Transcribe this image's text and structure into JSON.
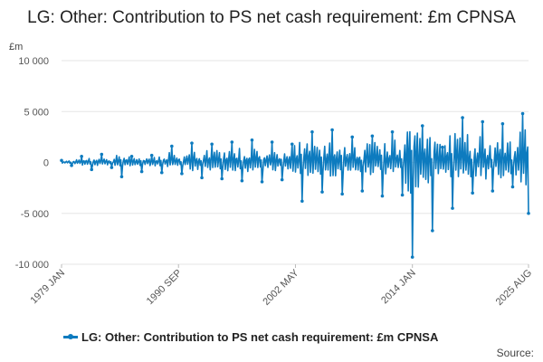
{
  "title": "LG: Other: Contribution to PS net cash requirement: £m CPNSA",
  "unit_label": "£m",
  "source_label": "Source:",
  "colors": {
    "series": "#0d7bbf",
    "grid": "#e6e6e6",
    "axis_text": "#555555"
  },
  "chart_data": {
    "type": "line",
    "xlabel": "",
    "ylabel": "£m",
    "x_range": [
      "1979-01",
      "2025-08"
    ],
    "ylim": [
      -10000,
      10000
    ],
    "yticks": [
      10000,
      5000,
      0,
      -5000,
      -10000
    ],
    "ytick_labels": [
      "10 000",
      "5 000",
      "0",
      "-5 000",
      "-10 000"
    ],
    "xticks": [
      "1979-01",
      "1990-09",
      "2002-05",
      "2014-01",
      "2025-08"
    ],
    "xtick_labels": [
      "1979 JAN",
      "1990 SEP",
      "2002 MAY",
      "2014 JAN",
      "2025 AUG"
    ],
    "grid": true,
    "legend": "bottom",
    "series": [
      {
        "name": "LG: Other: Contribution to PS net cash requirement: £m CPNSA",
        "x": [
          "1979-01",
          "1980-01",
          "1981-01",
          "1982-01",
          "1983-01",
          "1984-01",
          "1985-01",
          "1986-01",
          "1987-01",
          "1988-01",
          "1989-01",
          "1990-01",
          "1991-01",
          "1992-01",
          "1993-01",
          "1994-01",
          "1995-01",
          "1996-01",
          "1997-01",
          "1998-01",
          "1999-01",
          "2000-01",
          "2001-01",
          "2002-01",
          "2003-01",
          "2004-01",
          "2005-01",
          "2006-01",
          "2007-01",
          "2008-01",
          "2009-01",
          "2010-01",
          "2011-01",
          "2012-01",
          "2013-01",
          "2014-01",
          "2015-01",
          "2016-01",
          "2017-01",
          "2018-01",
          "2019-01",
          "2020-01",
          "2021-01",
          "2022-01",
          "2023-01",
          "2024-01",
          "2025-01",
          "2025-08"
        ],
        "values": [
          200,
          -300,
          600,
          -700,
          800,
          -500,
          -1400,
          600,
          -900,
          700,
          -1000,
          1600,
          -1100,
          1900,
          -1500,
          1800,
          -1600,
          2000,
          -1800,
          2200,
          -1900,
          2000,
          -1700,
          1800,
          -3800,
          3000,
          -2900,
          3200,
          -3100,
          2500,
          -2800,
          2600,
          -3300,
          3000,
          -3200,
          -9300,
          3600,
          -6700,
          1500,
          -4500,
          4400,
          -3000,
          4000,
          -2800,
          3800,
          -2400,
          4800,
          -5000
        ],
        "values_note": "approximate envelope values read from the chart at yearly intervals"
      }
    ]
  }
}
